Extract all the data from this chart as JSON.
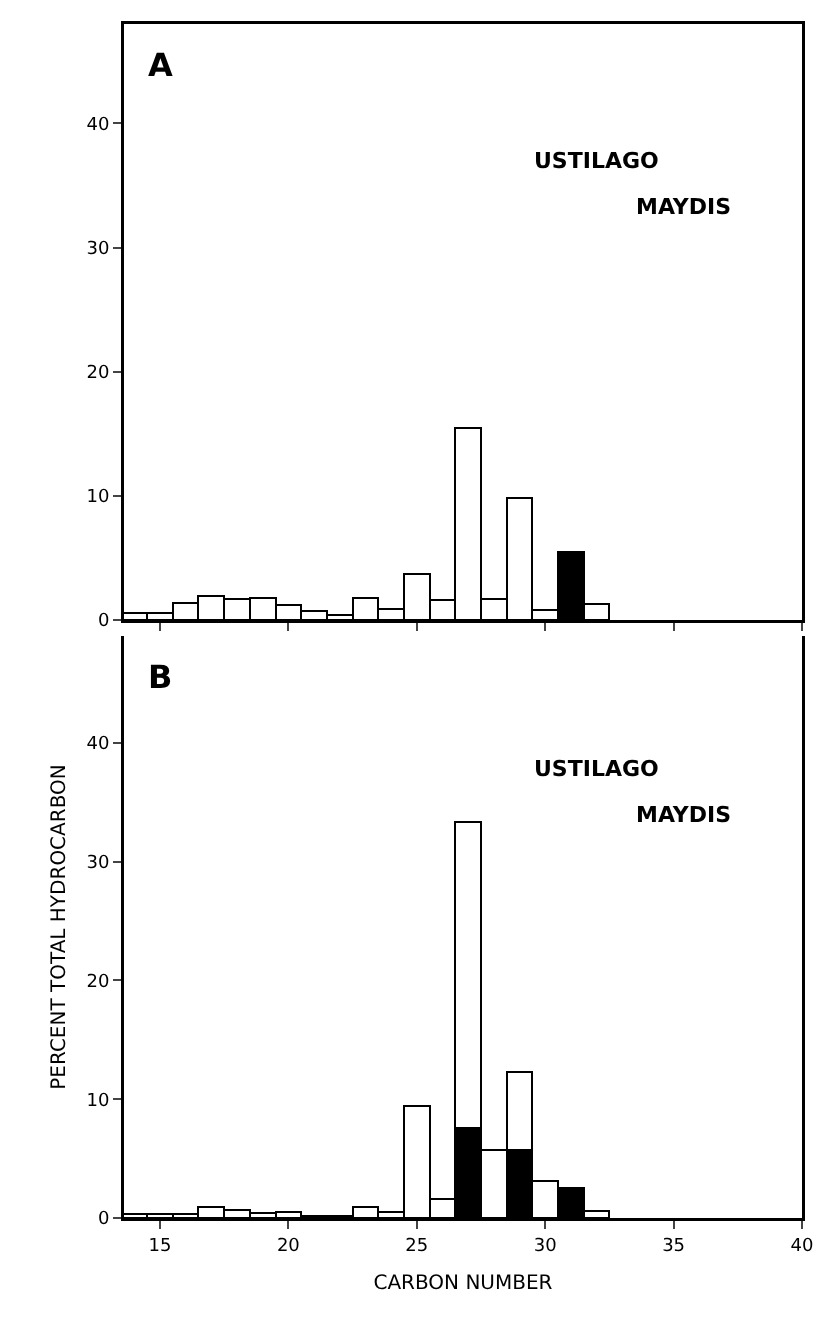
{
  "chart_data": [
    {
      "type": "bar",
      "stacked": true,
      "annotations": [
        "A",
        "USTILAGO",
        "MAYDIS"
      ],
      "x": [
        14,
        15,
        16,
        17,
        18,
        19,
        20,
        21,
        22,
        23,
        24,
        25,
        26,
        27,
        28,
        29,
        30,
        31,
        32
      ],
      "series": [
        {
          "color": "#000000",
          "values": [
            null,
            null,
            null,
            null,
            null,
            null,
            null,
            null,
            null,
            null,
            null,
            null,
            null,
            null,
            null,
            null,
            null,
            5.5,
            null
          ]
        },
        {
          "color": "#ffffff",
          "values": [
            0.6,
            0.6,
            1.4,
            1.9,
            1.7,
            1.8,
            1.2,
            0.7,
            0.4,
            1.8,
            0.9,
            3.7,
            1.6,
            15.5,
            1.7,
            9.8,
            0.8,
            null,
            1.3
          ]
        }
      ],
      "xlim": [
        13.6,
        40
      ],
      "xticks": [
        15,
        20,
        25,
        30,
        35,
        40
      ],
      "ylim": [
        0,
        48
      ],
      "yticks": [
        0,
        10,
        20,
        30,
        40
      ],
      "tick_labels": "y",
      "grid": false
    },
    {
      "type": "bar",
      "stacked": true,
      "annotations": [
        "B",
        "USTILAGO",
        "MAYDIS"
      ],
      "xlabel": "CARBON NUMBER",
      "ylabel": "PERCENT TOTAL HYDROCARBON",
      "x": [
        14,
        15,
        16,
        17,
        18,
        19,
        20,
        21,
        22,
        23,
        24,
        25,
        26,
        27,
        28,
        29,
        30,
        31,
        32
      ],
      "series": [
        {
          "color": "#000000",
          "values": [
            null,
            null,
            null,
            null,
            null,
            null,
            null,
            null,
            null,
            null,
            null,
            null,
            null,
            7.6,
            null,
            5.7,
            null,
            2.5,
            null
          ]
        },
        {
          "color": "#ffffff",
          "values": [
            0.3,
            0.3,
            0.3,
            0.9,
            0.7,
            0.4,
            0.5,
            0.2,
            0.2,
            0.9,
            0.5,
            9.4,
            1.6,
            25.7,
            5.7,
            6.6,
            3.1,
            null,
            0.6
          ]
        }
      ],
      "xlim": [
        13.6,
        40
      ],
      "xticks": [
        15,
        20,
        25,
        30,
        35,
        40
      ],
      "ylim": [
        0,
        49
      ],
      "yticks": [
        0,
        10,
        20,
        30,
        40
      ],
      "grid": false
    }
  ]
}
